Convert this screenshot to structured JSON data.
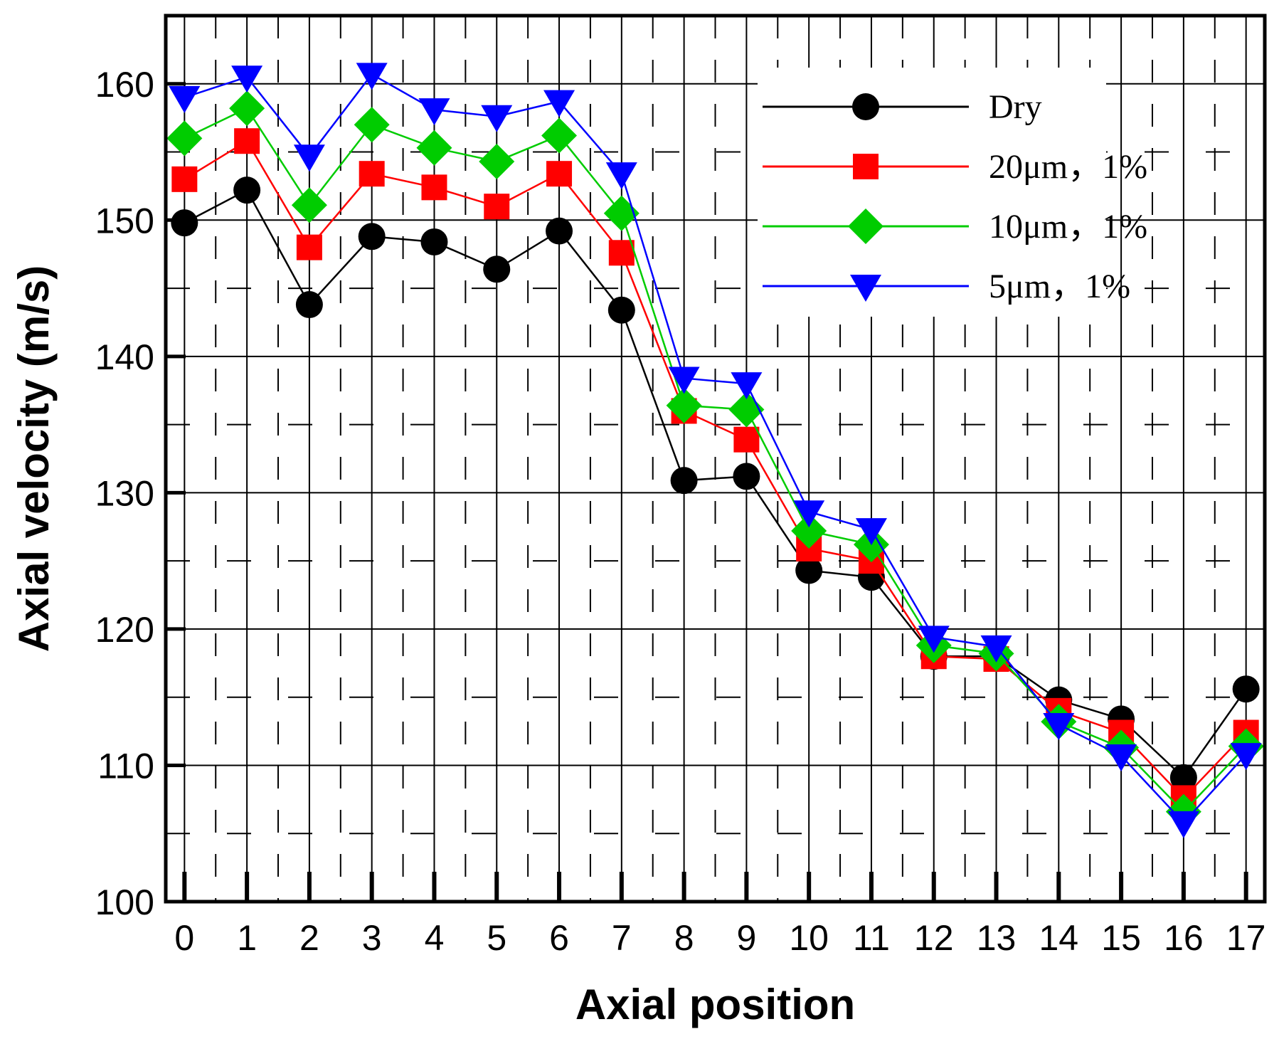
{
  "chart_data": {
    "type": "line",
    "title": "",
    "xlabel": "Axial position",
    "ylabel": "Axial velocity (m/s)",
    "x": [
      0,
      1,
      2,
      3,
      4,
      5,
      6,
      7,
      8,
      9,
      10,
      11,
      12,
      13,
      14,
      15,
      16,
      17
    ],
    "x_tick_labels": [
      "0",
      "1",
      "2",
      "3",
      "4",
      "5",
      "6",
      "7",
      "8",
      "9",
      "10",
      "11",
      "12",
      "13",
      "14",
      "15",
      "16",
      "17"
    ],
    "y_ticks": [
      100,
      110,
      120,
      130,
      140,
      150,
      160
    ],
    "y_tick_labels": [
      "100",
      "110",
      "120",
      "130",
      "140",
      "150",
      "160"
    ],
    "xlim": [
      -0.3,
      17.3
    ],
    "ylim": [
      100,
      165
    ],
    "grid": true,
    "legend_position": "top-right",
    "series": [
      {
        "name": "Dry",
        "color": "#000000",
        "marker": "circle",
        "values": [
          149.8,
          152.2,
          143.8,
          148.8,
          148.4,
          146.4,
          149.2,
          143.4,
          130.9,
          131.2,
          124.3,
          123.8,
          118.0,
          118.0,
          114.8,
          113.4,
          109.1,
          115.6
        ]
      },
      {
        "name": "20μm，1%",
        "color": "#ff0000",
        "marker": "square",
        "values": [
          153.0,
          155.8,
          148.0,
          153.4,
          152.4,
          151.0,
          153.4,
          147.6,
          136.0,
          133.9,
          125.9,
          125.0,
          118.0,
          117.8,
          114.0,
          112.4,
          107.6,
          112.4
        ]
      },
      {
        "name": "10μm，1%",
        "color": "#00cc00",
        "marker": "diamond",
        "values": [
          156.0,
          158.2,
          151.1,
          157.0,
          155.3,
          154.3,
          156.2,
          150.5,
          136.4,
          136.1,
          127.2,
          126.2,
          118.8,
          118.2,
          113.2,
          111.3,
          106.6,
          111.4
        ]
      },
      {
        "name": "5μm，1%",
        "color": "#0000ff",
        "marker": "triangle-down",
        "values": [
          159.0,
          160.5,
          154.7,
          160.7,
          158.1,
          157.6,
          158.7,
          153.4,
          138.4,
          138.0,
          128.6,
          127.3,
          119.4,
          118.7,
          113.0,
          110.7,
          105.8,
          110.8
        ]
      }
    ]
  }
}
